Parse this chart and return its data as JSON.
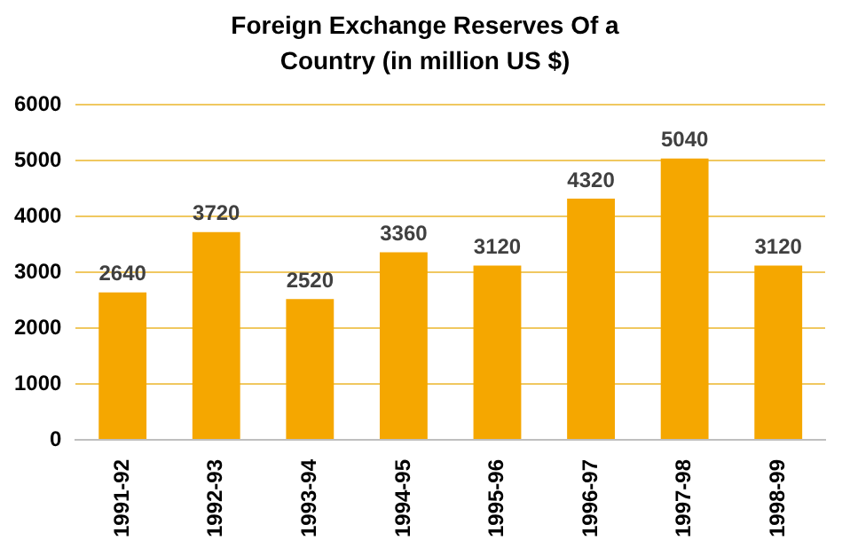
{
  "chart_data": {
    "type": "bar",
    "title": "Foreign Exchange Reserves Of a Country (in million US $)",
    "categories": [
      "1991-92",
      "1992-93",
      "1993-94",
      "1994-95",
      "1995-96",
      "1996-97",
      "1997-98",
      "1998-99"
    ],
    "values": [
      2640,
      3720,
      2520,
      3360,
      3120,
      4320,
      5040,
      3120
    ],
    "color": "#f5a700",
    "ylim": [
      0,
      6000
    ],
    "yticks": [
      0,
      1000,
      2000,
      3000,
      4000,
      5000,
      6000
    ],
    "grid": "y",
    "data_labels": true
  }
}
